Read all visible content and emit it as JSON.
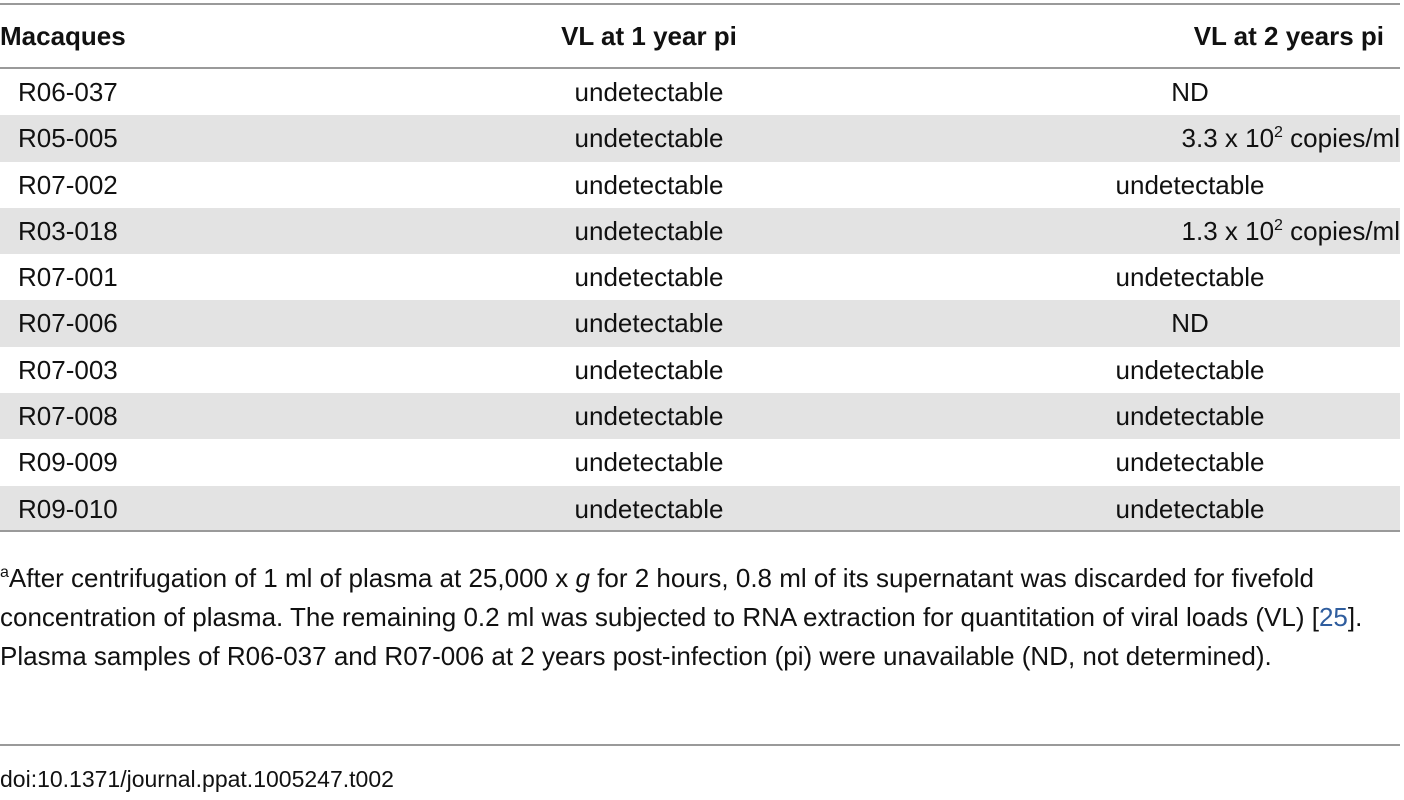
{
  "table": {
    "headers": [
      "Macaques",
      "VL at 1 year pi",
      "VL at 2 years pi"
    ],
    "rows": [
      {
        "macaque": "R06-037",
        "vl1": "undetectable",
        "vl2": "ND"
      },
      {
        "macaque": "R05-005",
        "vl1": "undetectable",
        "vl2_prefix": "3.3 x 10",
        "vl2_sup": "2",
        "vl2_suffix": " copies/ml"
      },
      {
        "macaque": "R07-002",
        "vl1": "undetectable",
        "vl2": "undetectable"
      },
      {
        "macaque": "R03-018",
        "vl1": "undetectable",
        "vl2_prefix": "1.3 x 10",
        "vl2_sup": "2",
        "vl2_suffix": " copies/ml"
      },
      {
        "macaque": "R07-001",
        "vl1": "undetectable",
        "vl2": "undetectable"
      },
      {
        "macaque": "R07-006",
        "vl1": "undetectable",
        "vl2": "ND"
      },
      {
        "macaque": "R07-003",
        "vl1": "undetectable",
        "vl2": "undetectable"
      },
      {
        "macaque": "R07-008",
        "vl1": "undetectable",
        "vl2": "undetectable"
      },
      {
        "macaque": "R09-009",
        "vl1": "undetectable",
        "vl2": "undetectable"
      },
      {
        "macaque": "R09-010",
        "vl1": "undetectable",
        "vl2": "undetectable"
      }
    ]
  },
  "footnote": {
    "marker": "a",
    "text_1": "After centrifugation of 1 ml of plasma at 25,000 x ",
    "italic_g": "g",
    "text_2": " for 2 hours, 0.8 ml of its supernatant was discarded for fivefold concentration of plasma. The remaining 0.2 ml was subjected to RNA extraction for quantitation of viral loads (VL) [",
    "ref": "25",
    "text_3": "]. Plasma samples of R06-037 and R07-006 at 2 years post-infection (pi) were unavailable (ND, not determined)."
  },
  "doi": "doi:10.1371/journal.ppat.1005247.t002",
  "colors": {
    "row_stripe": "#e3e3e3",
    "rule": "#9a9a9a",
    "link": "#2f5d9e"
  }
}
